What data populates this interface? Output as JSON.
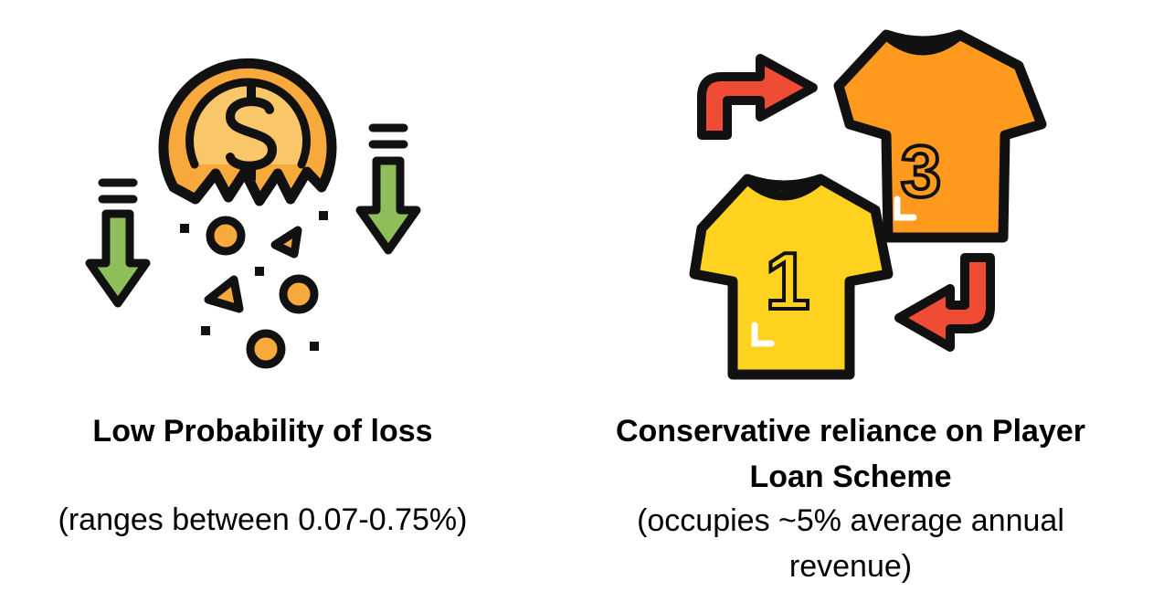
{
  "panels": [
    {
      "heading": "Low Probability of loss",
      "subtext": "(ranges between 0.07-0.75%)",
      "icon": "coin-loss-icon"
    },
    {
      "heading_line1": "Conservative reliance on Player",
      "heading_line2": "Loan Scheme",
      "subtext_line1": "(occupies ~5% average annual",
      "subtext_line2": "revenue)",
      "icon": "jersey-swap-icon",
      "jersey_numbers": [
        "1",
        "3"
      ]
    }
  ],
  "colors": {
    "coin_orange": "#F7A93B",
    "coin_inner": "#F9C76A",
    "arrow_green": "#8DBE5A",
    "arrow_red": "#F04B35",
    "jersey_yellow": "#FFD21F",
    "jersey_orange": "#FF9A1F",
    "outline": "#111111"
  }
}
